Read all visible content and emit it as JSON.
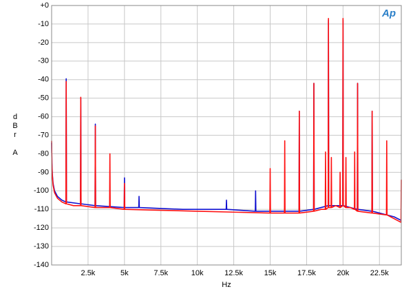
{
  "chart_data": {
    "type": "line",
    "logo": "Ap",
    "x_label": "Hz",
    "y_label": "dBr A",
    "xlim": [
      0,
      24000
    ],
    "ylim": [
      -140,
      0
    ],
    "grid": true,
    "xticks": [
      {
        "value": 2500,
        "label": "2.5k"
      },
      {
        "value": 5000,
        "label": "5k"
      },
      {
        "value": 7500,
        "label": "7.5k"
      },
      {
        "value": 10000,
        "label": "10k"
      },
      {
        "value": 12500,
        "label": "12.5k"
      },
      {
        "value": 15000,
        "label": "15k"
      },
      {
        "value": 17500,
        "label": "17.5k"
      },
      {
        "value": 20000,
        "label": "20k"
      },
      {
        "value": 22500,
        "label": "22.5k"
      }
    ],
    "yticks": [
      {
        "value": 0,
        "label": "+0"
      },
      -10,
      -20,
      -30,
      -40,
      -50,
      -60,
      -70,
      -80,
      -90,
      -100,
      -110,
      -120,
      -130,
      -140
    ],
    "series": [
      {
        "color": "#1010d0",
        "x": [
          0,
          20,
          50,
          100,
          200,
          400,
          700,
          980,
          1000,
          1020,
          1980,
          2000,
          2020,
          2980,
          3000,
          3020,
          4980,
          5000,
          5020,
          5980,
          6000,
          6020,
          9000,
          11980,
          12000,
          12020,
          13980,
          14000,
          14020,
          16980,
          17000,
          17020,
          17980,
          18000,
          18020,
          18980,
          19000,
          19020,
          19980,
          20000,
          20020,
          20980,
          21000,
          21020,
          21980,
          22000,
          22020,
          23500,
          24000
        ],
        "values": [
          -74,
          -85,
          -91,
          -96,
          -100,
          -103,
          -105,
          -106,
          -39.5,
          -106,
          -107,
          -50,
          -107,
          -108,
          -64,
          -108,
          -109,
          -93,
          -109,
          -109,
          -103,
          -109,
          -110,
          -110,
          -105,
          -110,
          -111,
          -100,
          -111,
          -111,
          -57,
          -111,
          -110,
          -42,
          -110,
          -108,
          -8,
          -108,
          -108,
          -8,
          -108,
          -110,
          -42,
          -110,
          -111,
          -57,
          -111,
          -114,
          -116
        ]
      },
      {
        "color": "#ff1010",
        "x": [
          0,
          20,
          50,
          100,
          200,
          400,
          700,
          980,
          1000,
          1020,
          1500,
          1980,
          2000,
          2020,
          2980,
          3000,
          3020,
          3980,
          4000,
          4020,
          4980,
          5000,
          5020,
          7500,
          10000,
          12500,
          14980,
          15000,
          15020,
          15980,
          16000,
          16020,
          16980,
          17000,
          17020,
          17980,
          18000,
          18020,
          18500,
          18780,
          18800,
          18820,
          18980,
          19000,
          19020,
          19180,
          19200,
          19220,
          19500,
          19780,
          19800,
          19820,
          19980,
          20000,
          20020,
          20180,
          20200,
          20220,
          20500,
          20780,
          20800,
          20820,
          20980,
          21000,
          21020,
          21980,
          22000,
          22020,
          22980,
          23000,
          23020,
          23500,
          23980,
          24000
        ],
        "values": [
          -73,
          -86,
          -92,
          -97,
          -101,
          -104,
          -106,
          -107,
          -41,
          -107,
          -108,
          -108,
          -49.5,
          -108,
          -109,
          -65,
          -109,
          -109,
          -80,
          -109,
          -110,
          -96,
          -110,
          -110.5,
          -111,
          -111.5,
          -112,
          -88,
          -112,
          -112,
          -73,
          -112,
          -112,
          -57,
          -112,
          -111,
          -42,
          -111,
          -110,
          -110,
          -79,
          -110,
          -109,
          -7,
          -109,
          -109,
          -82,
          -109,
          -108,
          -109,
          -90,
          -109,
          -108,
          -7,
          -108,
          -109,
          -82,
          -109,
          -109,
          -110,
          -79,
          -110,
          -111,
          -42,
          -111,
          -112,
          -57,
          -112,
          -113,
          -73,
          -113,
          -115,
          -117,
          -94
        ]
      }
    ]
  }
}
